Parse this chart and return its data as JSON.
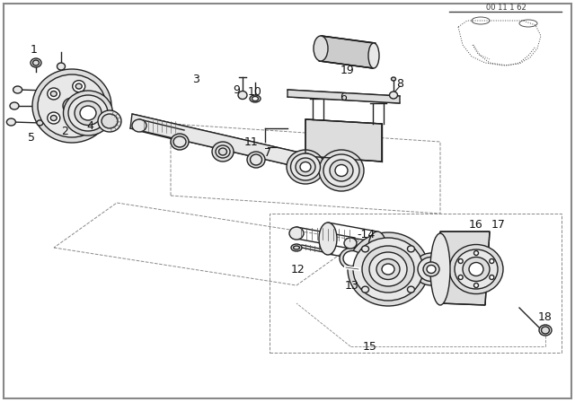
{
  "bg_color": "#ffffff",
  "line_color": "#222222",
  "line_width": 1.0,
  "gray_fill": "#e8e8e8",
  "dark_gray": "#cccccc",
  "mid_gray": "#dddddd",
  "diagram_code": "00 11 1 62"
}
